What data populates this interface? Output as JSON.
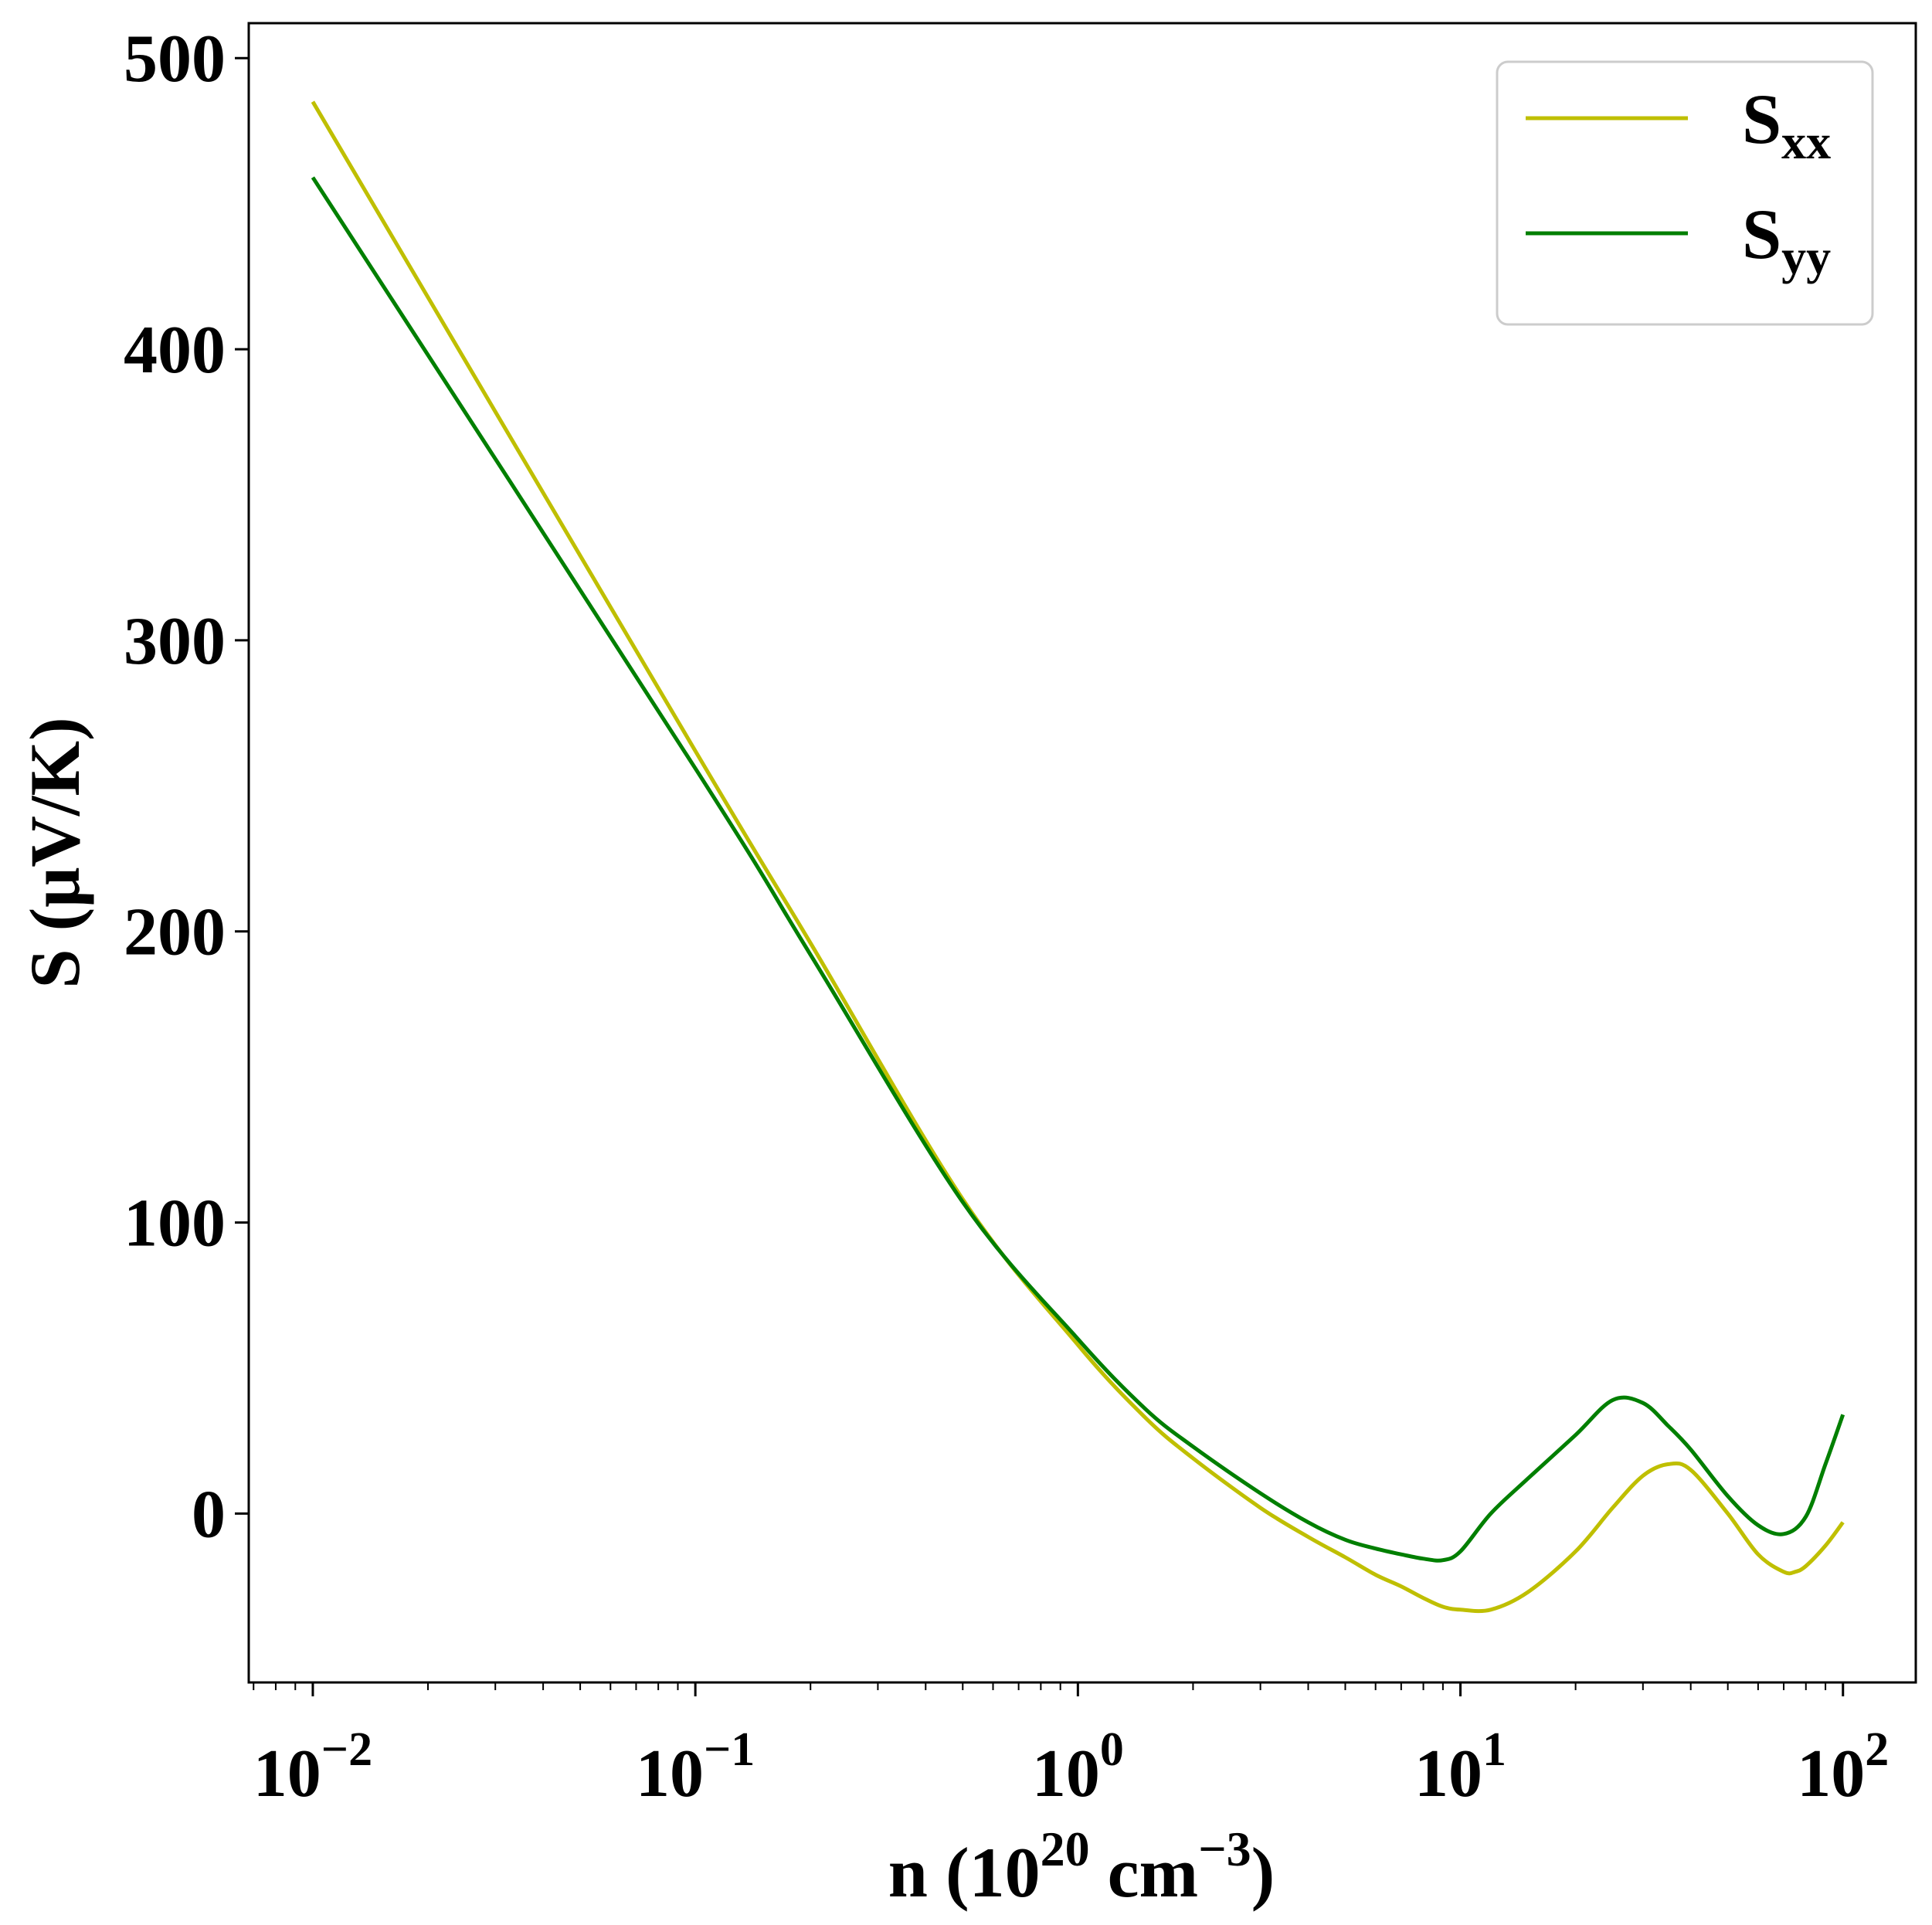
{
  "chart_data": {
    "type": "line",
    "title": "",
    "xlabel": {
      "base": "n (10",
      "sup1": "20",
      "mid": " cm",
      "sup2": "−3",
      "end": ")"
    },
    "ylabel": "S (μV/K)",
    "xscale": "log",
    "xlim": [
      0.0068,
      155
    ],
    "ylim": [
      -58,
      512
    ],
    "grid": false,
    "legend_position": "top-right",
    "x_ticks": [
      {
        "value": 0.01,
        "base": "10",
        "exp": "−2"
      },
      {
        "value": 0.1,
        "base": "10",
        "exp": "−1"
      },
      {
        "value": 1,
        "base": "10",
        "exp": "0"
      },
      {
        "value": 10,
        "base": "10",
        "exp": "1"
      },
      {
        "value": 100,
        "base": "10",
        "exp": "2"
      }
    ],
    "y_ticks": [
      {
        "value": 0,
        "label": "0"
      },
      {
        "value": 100,
        "label": "100"
      },
      {
        "value": 200,
        "label": "200"
      },
      {
        "value": 300,
        "label": "300"
      },
      {
        "value": 400,
        "label": "400"
      },
      {
        "value": 500,
        "label": "500"
      }
    ],
    "series": [
      {
        "name": "S",
        "subscript": "xx",
        "color": "#bfbf00",
        "x": [
          0.01,
          0.1,
          0.2,
          0.5,
          1,
          1.5,
          2,
          3,
          4,
          5,
          6,
          7,
          8,
          9,
          10,
          12,
          15,
          20,
          25,
          30,
          35,
          40,
          50,
          60,
          70,
          75,
          80,
          90,
          100
        ],
        "y": [
          485,
          262,
          196,
          108,
          58,
          33,
          19,
          2,
          -8,
          -15,
          -21,
          -25,
          -29,
          -32,
          -33,
          -33,
          -27,
          -13,
          2,
          13,
          17,
          15,
          0,
          -14,
          -20,
          -20,
          -18,
          -11,
          -3
        ]
      },
      {
        "name": "S",
        "subscript": "yy",
        "color": "#007f00",
        "x": [
          0.01,
          0.1,
          0.2,
          0.5,
          1,
          1.5,
          2,
          3,
          4,
          5,
          6,
          7,
          8,
          9,
          10,
          12,
          15,
          20,
          25,
          30,
          35,
          40,
          50,
          60,
          70,
          80,
          90,
          100
        ],
        "y": [
          459,
          256,
          192,
          107,
          60,
          36,
          23,
          7,
          -3,
          -9,
          -12,
          -14,
          -15.5,
          -16,
          -13,
          0,
          12,
          27,
          39,
          38,
          30,
          22,
          6,
          -4,
          -7,
          -1,
          17,
          34
        ]
      }
    ]
  }
}
